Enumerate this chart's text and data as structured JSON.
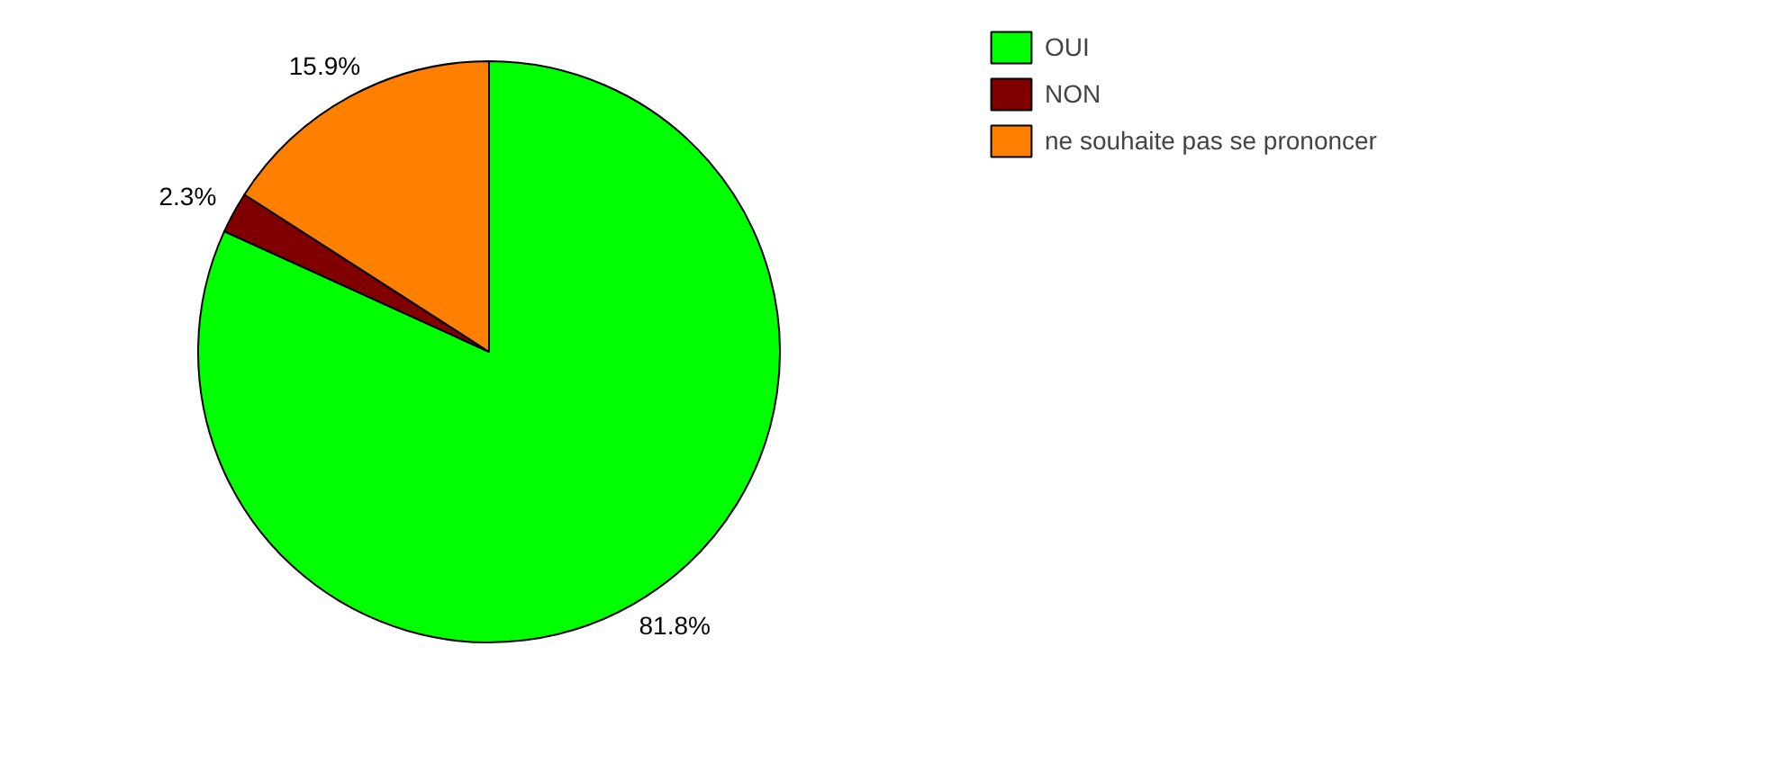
{
  "chart_data": {
    "type": "pie",
    "categories": [
      "OUI",
      "NON",
      "ne souhaite pas se prononcer"
    ],
    "values": [
      81.8,
      2.3,
      15.9
    ],
    "colors": [
      "#00ff00",
      "#800000",
      "#ff8000"
    ],
    "value_labels": [
      "81.8%",
      "2.3%",
      "15.9%"
    ],
    "legend": "top right"
  }
}
